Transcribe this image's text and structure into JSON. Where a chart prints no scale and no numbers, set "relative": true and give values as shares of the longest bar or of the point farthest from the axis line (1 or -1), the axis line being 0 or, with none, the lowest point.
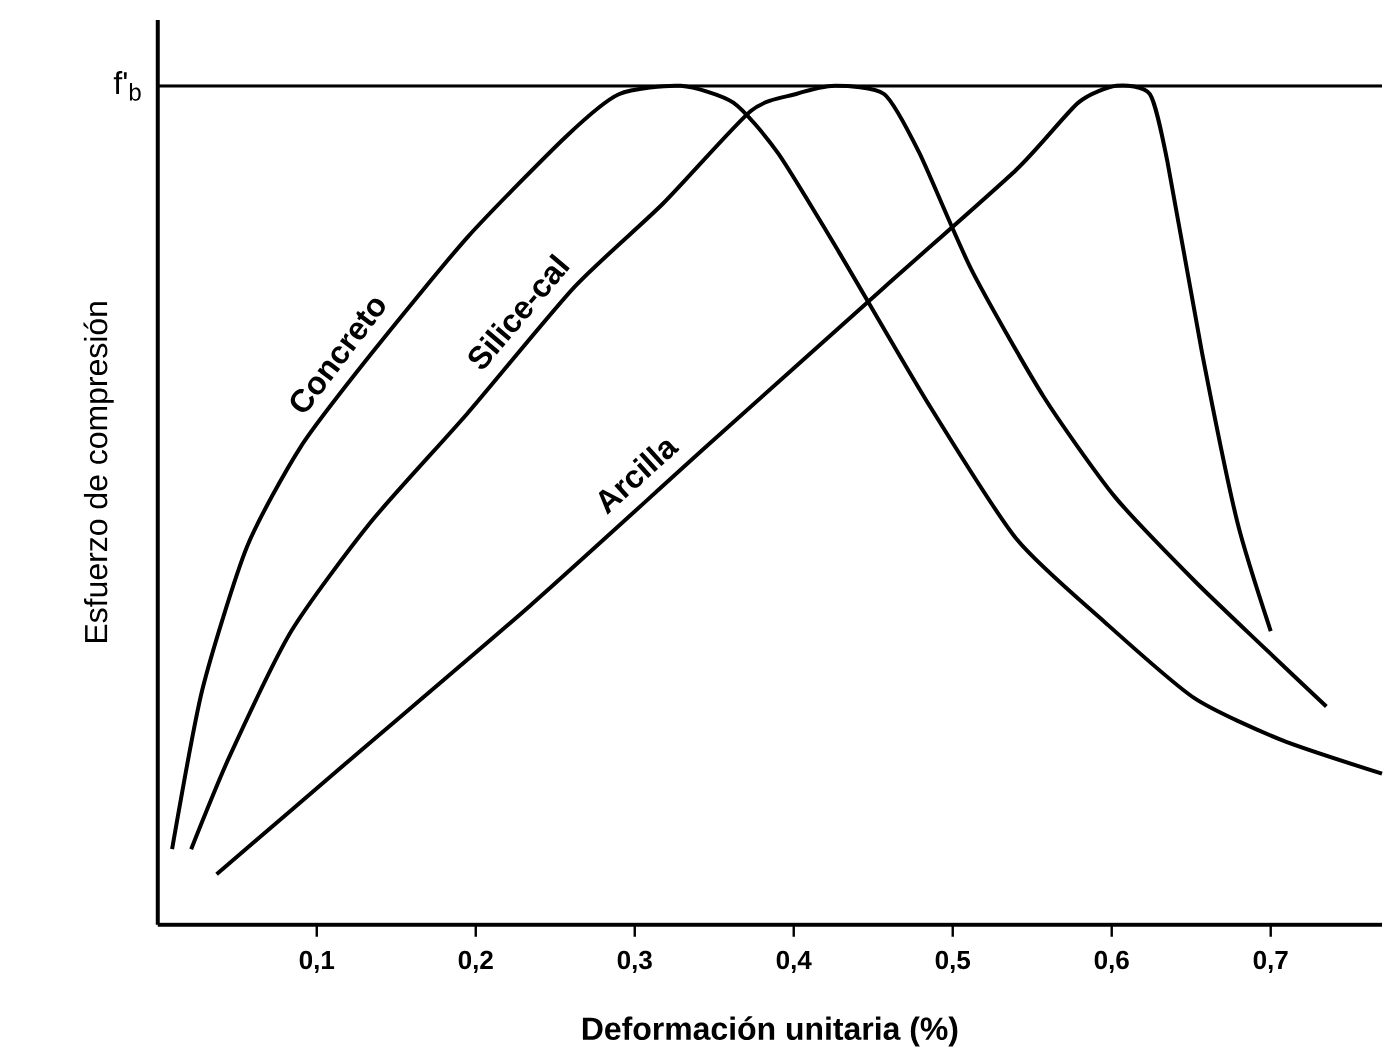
{
  "chart_data": {
    "type": "line",
    "relative": true,
    "xlabel": "Deformación unitaria (%)",
    "ylabel": "Esfuerzo de compresión",
    "xlim": [
      0,
      0.77
    ],
    "xticks": [
      {
        "value": 0.1,
        "label": "0,1"
      },
      {
        "value": 0.2,
        "label": "0,2"
      },
      {
        "value": 0.3,
        "label": "0,3"
      },
      {
        "value": 0.4,
        "label": "0,4"
      },
      {
        "value": 0.5,
        "label": "0,5"
      },
      {
        "value": 0.6,
        "label": "0,6"
      },
      {
        "value": 0.7,
        "label": "0,7"
      }
    ],
    "ref_lines": [
      {
        "axis": "y",
        "value": 1,
        "label": "f'$_{b}$",
        "color": "#000000"
      }
    ],
    "grid": false,
    "marker": "none",
    "line_style": "solid",
    "series": [
      {
        "name": "Concreto",
        "color": "#000000",
        "x": [
          0.009,
          0.028,
          0.056,
          0.09,
          0.134,
          0.195,
          0.257,
          0.29,
          0.329,
          0.362,
          0.39,
          0.429,
          0.485,
          0.54,
          0.596,
          0.652,
          0.707,
          0.77
        ],
        "values": [
          0.09,
          0.28,
          0.45,
          0.57,
          0.68,
          0.82,
          0.94,
          0.99,
          1.0,
          0.98,
          0.92,
          0.8,
          0.62,
          0.46,
          0.36,
          0.27,
          0.22,
          0.18
        ]
      },
      {
        "name": "Silice-cal",
        "color": "#000000",
        "x": [
          0.021,
          0.045,
          0.084,
          0.134,
          0.195,
          0.262,
          0.318,
          0.373,
          0.401,
          0.426,
          0.457,
          0.479,
          0.512,
          0.557,
          0.602,
          0.652,
          0.696,
          0.735
        ],
        "values": [
          0.09,
          0.2,
          0.35,
          0.48,
          0.61,
          0.76,
          0.86,
          0.97,
          0.99,
          1.0,
          0.99,
          0.92,
          0.78,
          0.63,
          0.51,
          0.41,
          0.33,
          0.26
        ]
      },
      {
        "name": "Arcilla",
        "color": "#000000",
        "x": [
          0.037,
          0.123,
          0.234,
          0.345,
          0.457,
          0.54,
          0.579,
          0.603,
          0.624,
          0.635,
          0.657,
          0.679,
          0.7
        ],
        "values": [
          0.06,
          0.2,
          0.38,
          0.57,
          0.76,
          0.9,
          0.98,
          1.0,
          0.99,
          0.91,
          0.68,
          0.48,
          0.35
        ]
      }
    ]
  }
}
